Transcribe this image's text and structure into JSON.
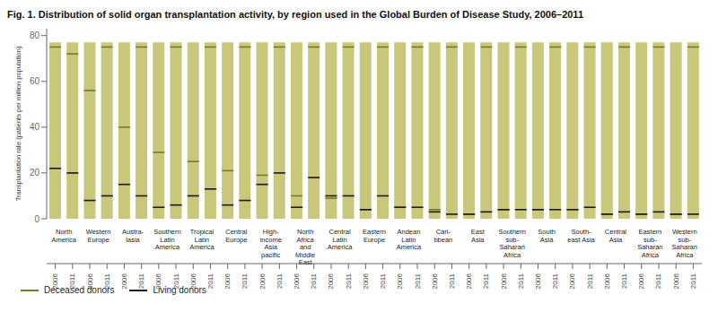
{
  "chart_data": {
    "type": "bar",
    "title": "Fig. 1. Distribution of solid organ transplantation activity, by region used in the Global Burden of Disease Study, 2006–2011",
    "y_label": "Transplantation rate (patients per million population)",
    "categories": [
      "2006",
      "2011",
      "2006",
      "2011",
      "2006",
      "2011",
      "2006",
      "2011",
      "2006",
      "2011",
      "2006",
      "2011",
      "2006",
      "2011",
      "2006",
      "2011",
      "2006",
      "2011",
      "2006",
      "2011",
      "2006",
      "2011",
      "2006",
      "2011",
      "2006",
      "2011",
      "2006",
      "2011",
      "2006",
      "2011",
      "2006",
      "2011",
      "2006",
      "2011",
      "2006",
      "2011",
      "2006",
      "2011"
    ],
    "groups": [
      "North\nAmerica",
      "Western\nEurope",
      "Austra-\nlasia",
      "Southern\nLatin\nAmerica",
      "Tropical\nLatin\nAmerica",
      "Central\nEurope",
      "High-\nincome\nAsia\npacific",
      "North\nAfrica\nand\nMiddle\nEast",
      "Central\nLatin\nAmerica",
      "Eastern\nEurope",
      "Andean\nLatin\nAmerica",
      "Cari-\nbbean",
      "East\nAsia",
      "Southern\nsub-\nSaharan\nAfrica",
      "South\nAsia",
      "South-\neast Asia",
      "Central\nAsia",
      "Eastern\nsub-\nSaharan\nAfrica",
      "Western\nsub-\nSaharan\nAfrica"
    ],
    "series": [
      {
        "type": "bar",
        "color": "#c8c87a",
        "values": [
          77,
          77,
          77,
          77,
          77,
          77,
          77,
          77,
          77,
          77,
          77,
          77,
          77,
          77,
          77,
          77,
          77,
          77,
          77,
          77,
          77,
          77,
          77,
          77,
          77,
          77,
          77,
          77,
          77,
          77,
          77,
          77,
          77,
          77,
          77,
          77,
          77,
          77
        ]
      },
      {
        "name": "Deceased donors",
        "type": "line",
        "color": "#7a7a20",
        "values": [
          75,
          72,
          56,
          75,
          40,
          75,
          29,
          75,
          25,
          75,
          21,
          75,
          19,
          75,
          10,
          75,
          9,
          75,
          4,
          75,
          5,
          75,
          4,
          75,
          2,
          75,
          4,
          75,
          4,
          75,
          4,
          75,
          2,
          75,
          2,
          75,
          2,
          75
        ]
      },
      {
        "name": "Living donors",
        "type": "line",
        "color": "#1a1a1a",
        "values": [
          22,
          20,
          8,
          10,
          15,
          10,
          5,
          6,
          10,
          13,
          6,
          8,
          15,
          20,
          5,
          18,
          10,
          10,
          4,
          10,
          5,
          5,
          3,
          2,
          2,
          3,
          4,
          4,
          4,
          4,
          4,
          5,
          2,
          3,
          2,
          3,
          2,
          2
        ]
      }
    ],
    "ylim": [
      0,
      83
    ],
    "yticks": [
      0,
      20,
      40,
      60,
      80
    ],
    "grid": false,
    "legend": "bottom left"
  }
}
